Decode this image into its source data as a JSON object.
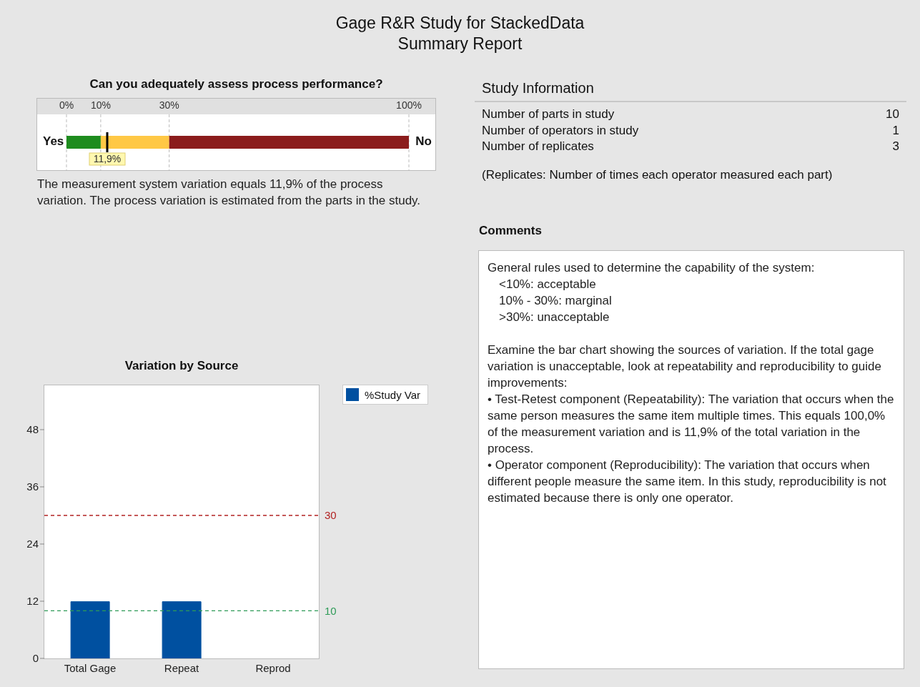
{
  "chart_data": [
    {
      "type": "other",
      "title": "Gage R&R Study for StackedData",
      "subtitle": "Summary Report"
    },
    {
      "type": "bar",
      "orientation": "horizontal",
      "stacked": true,
      "title": "Can you adequately assess process performance?",
      "categories": [
        null
      ],
      "series": [
        {
          "color": "#1e8c1e",
          "values": [
            10
          ]
        },
        {
          "color": "#ffc845",
          "values": [
            20
          ]
        },
        {
          "color": "#8b1c1c",
          "values": [
            70
          ]
        }
      ],
      "xlim": [
        0,
        100
      ],
      "xticks": [
        {
          "value": 0,
          "label": "0%"
        },
        {
          "value": 10,
          "label": "10%"
        },
        {
          "value": 30,
          "label": "30%"
        },
        {
          "value": 100,
          "label": "100%"
        }
      ],
      "grid": "x",
      "tick_labels": "x",
      "ref_lines": [
        {
          "axis": "x",
          "value": 11.9,
          "label": "11,9%",
          "color": "#000000"
        }
      ],
      "annotations": [
        "Yes",
        "No",
        "The measurement system variation equals 11,9% of the process variation. The process variation is estimated from the parts in the study."
      ]
    },
    {
      "type": "other",
      "title": "Study Information",
      "categories": [
        "Number of parts in study",
        "Number of operators in study",
        "Number of replicates"
      ],
      "values": [
        10,
        1,
        3
      ],
      "data_labels": true,
      "annotations": [
        "(Replicates: Number of times each operator measured each part)"
      ]
    },
    {
      "type": "other",
      "title": "Comments",
      "annotations": [
        "General rules used to determine the capability of the system:",
        "<10%: acceptable",
        "10% - 30%: marginal",
        ">30%: unacceptable",
        "Examine the bar chart showing the sources of variation. If the total gage variation is unacceptable, look at repeatability and reproducibility to guide improvements:",
        "• Test-Retest component (Repeatability): The variation that occurs when the same person measures the same item multiple times. This equals 100,0% of the measurement variation and is 11,9% of the total variation in the process.",
        "• Operator component (Reproducibility): The variation that occurs when different people measure the same item. In this study, reproducibility is not estimated because there is only one operator."
      ]
    },
    {
      "type": "bar",
      "title": "Variation by Source",
      "categories": [
        "Total Gage",
        "Repeat",
        "Reprod"
      ],
      "series": [
        {
          "name": "%Study Var",
          "color": "#0050a0",
          "values": [
            11.9,
            11.9,
            0
          ]
        }
      ],
      "ylim": [
        0,
        57.3
      ],
      "yticks": [
        0,
        12,
        24,
        36,
        48
      ],
      "legend": "top right",
      "ref_lines": [
        {
          "axis": "y",
          "value": 30,
          "label": "30",
          "color": "#b22222",
          "line_style": "dashed"
        },
        {
          "axis": "y",
          "value": 10,
          "label": "10",
          "color": "#2e9b57",
          "line_style": "dashed"
        }
      ]
    }
  ]
}
